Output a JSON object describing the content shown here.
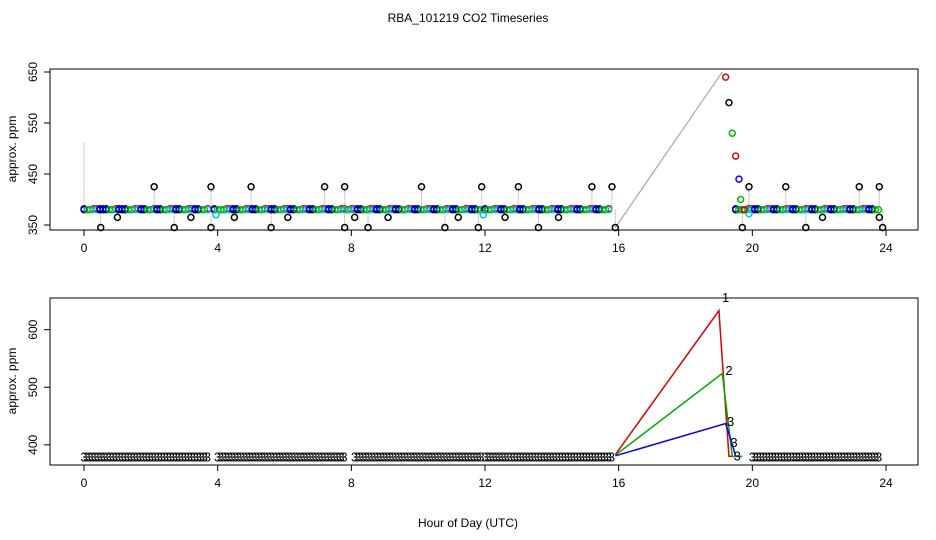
{
  "title": "RBA_101219  CO2 Timeseries",
  "xlabel": "Hour of Day (UTC)",
  "chart_data": [
    {
      "type": "scatter",
      "panel": "top",
      "ylabel": "approx. ppm",
      "xlim": [
        0,
        24
      ],
      "ylim": [
        350,
        650
      ],
      "x_ticks": [
        0,
        4,
        8,
        12,
        16,
        20,
        24
      ],
      "y_ticks": [
        350,
        450,
        550,
        650
      ],
      "baseline_ppm": 380,
      "spike_ppm": 425,
      "dip_ppm": 345,
      "spike_hours": [
        2.1,
        3.8,
        5.0,
        7.2,
        7.8,
        10.1,
        11.9,
        13.0,
        15.2,
        15.8,
        19.9,
        21.0,
        23.2,
        23.8
      ],
      "dip_hours": [
        0.5,
        2.7,
        3.8,
        5.6,
        7.8,
        8.5,
        10.8,
        11.8,
        13.6,
        15.9,
        19.7,
        21.6,
        23.9
      ],
      "mid_hours": [
        1.0,
        3.2,
        4.5,
        6.1,
        8.1,
        9.1,
        11.2,
        12.6,
        14.2,
        22.1,
        23.8
      ],
      "segments": [
        [
          0.0,
          3.8
        ],
        [
          3.9,
          7.8
        ],
        [
          7.9,
          11.9
        ],
        [
          12.0,
          15.8
        ],
        [
          19.5,
          23.8
        ]
      ],
      "excursion": [
        {
          "x": 19.2,
          "y": 640,
          "color": "#dd0000"
        },
        {
          "x": 19.3,
          "y": 590,
          "color": "#000000"
        },
        {
          "x": 19.4,
          "y": 530,
          "color": "#00bb00"
        },
        {
          "x": 19.5,
          "y": 485,
          "color": "#dd0000"
        },
        {
          "x": 19.6,
          "y": 440,
          "color": "#0000ff"
        },
        {
          "x": 19.65,
          "y": 400,
          "color": "#00bb00"
        },
        {
          "x": 19.75,
          "y": 380,
          "color": "#dd0000"
        }
      ],
      "bridge": [
        [
          15.9,
          345
        ],
        [
          19.1,
          650
        ]
      ],
      "series_colors": [
        "#000000",
        "#dd0000",
        "#00bb00",
        "#0000ff",
        "#00cccc"
      ]
    },
    {
      "type": "line",
      "panel": "bottom",
      "ylabel": "approx. ppm",
      "xlim": [
        0,
        24
      ],
      "ylim": [
        365,
        655
      ],
      "x_ticks": [
        0,
        4,
        8,
        12,
        16,
        20,
        24
      ],
      "y_ticks": [
        400,
        500,
        600
      ],
      "baseline_ppm": 380,
      "segments": [
        [
          0.0,
          3.7
        ],
        [
          4.0,
          7.8
        ],
        [
          8.1,
          11.9
        ],
        [
          12.0,
          15.8
        ],
        [
          20.0,
          23.8
        ]
      ],
      "series": [
        {
          "name": "1",
          "color": "#dd0000",
          "points": [
            [
              15.9,
              383
            ],
            [
              19.0,
              633
            ],
            [
              19.3,
              380
            ],
            [
              19.6,
              380
            ]
          ]
        },
        {
          "name": "2",
          "color": "#00aa00",
          "points": [
            [
              15.9,
              382
            ],
            [
              19.1,
              524
            ],
            [
              19.4,
              380
            ],
            [
              19.7,
              380
            ]
          ]
        },
        {
          "name": "3",
          "color": "#0000ff",
          "points": [
            [
              15.9,
              381
            ],
            [
              19.2,
              437
            ],
            [
              19.4,
              401
            ],
            [
              19.5,
              380
            ]
          ]
        }
      ],
      "labels": [
        {
          "text": "1",
          "x": 19.2,
          "y": 655,
          "color": "#dd0000"
        },
        {
          "text": "2",
          "x": 19.3,
          "y": 528,
          "color": "#aa7700"
        },
        {
          "text": "3",
          "x": 19.35,
          "y": 440,
          "color": "#008888"
        },
        {
          "text": "3",
          "x": 19.45,
          "y": 403,
          "color": "#008888"
        },
        {
          "text": "3",
          "x": 19.55,
          "y": 380,
          "color": "#008888"
        }
      ],
      "marker_text": "3"
    }
  ]
}
